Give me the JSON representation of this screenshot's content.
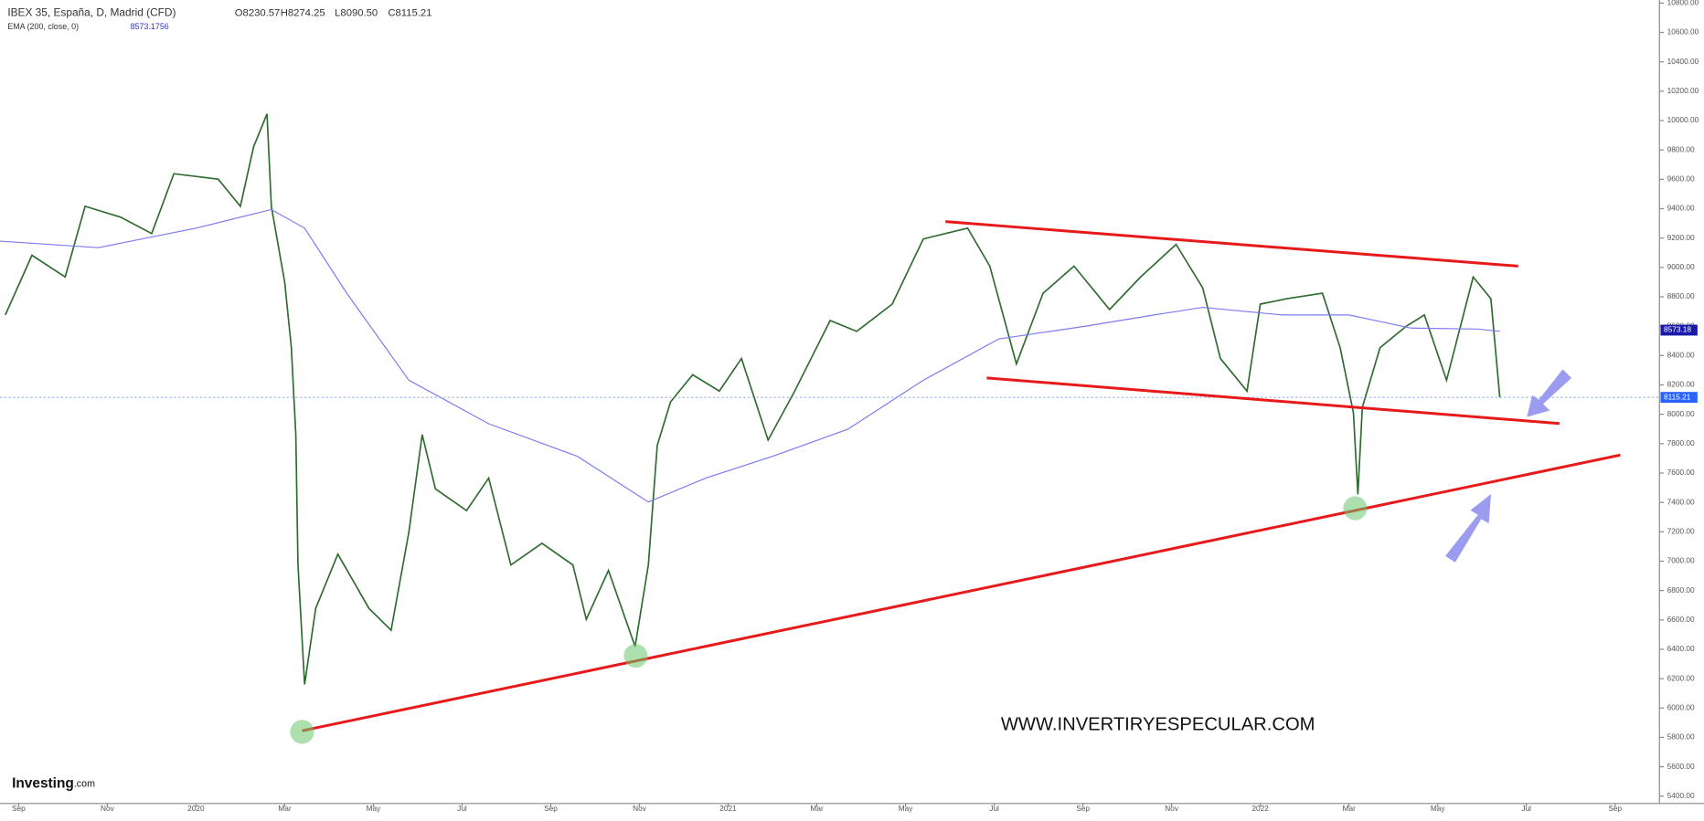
{
  "chart_data": {
    "type": "line",
    "header": {
      "open": "O8230.57",
      "high": "H8274.25",
      "low": "L8090.50",
      "close": "C8115.21",
      "ema_value": "8573.1756"
    },
    "watermark": "WWW.INVERTIRYESPECULAR.COM",
    "logo": "Investing",
    "logo_suffix": ".com",
    "last_price": 8115.21,
    "ema_last": 8573.18,
    "xlim": [
      -0.42,
      37
    ],
    "xticks": [
      {
        "value": 0,
        "label": "Sep"
      },
      {
        "value": 2,
        "label": "Nov"
      },
      {
        "value": 4,
        "label": "2020"
      },
      {
        "value": 6,
        "label": "Mar"
      },
      {
        "value": 8,
        "label": "May"
      },
      {
        "value": 10,
        "label": "Jul"
      },
      {
        "value": 12,
        "label": "Sep"
      },
      {
        "value": 14,
        "label": "Nov"
      },
      {
        "value": 16,
        "label": "2021"
      },
      {
        "value": 18,
        "label": "Mar"
      },
      {
        "value": 20,
        "label": "May"
      },
      {
        "value": 22,
        "label": "Jul"
      },
      {
        "value": 24,
        "label": "Sep"
      },
      {
        "value": 26,
        "label": "Nov"
      },
      {
        "value": 28,
        "label": "2022"
      },
      {
        "value": 30,
        "label": "Mar"
      },
      {
        "value": 32,
        "label": "May"
      },
      {
        "value": 34,
        "label": "Jul"
      },
      {
        "value": 36,
        "label": "Sep"
      }
    ],
    "ylim": [
      5350,
      10820
    ],
    "yticks": [
      {
        "value": 5400,
        "label": "5400.00"
      },
      {
        "value": 5600,
        "label": "5600.00"
      },
      {
        "value": 5800,
        "label": "5800.00"
      },
      {
        "value": 6000,
        "label": "6000.00"
      },
      {
        "value": 6200,
        "label": "6200.00"
      },
      {
        "value": 6400,
        "label": "6400.00"
      },
      {
        "value": 6600,
        "label": "6600.00"
      },
      {
        "value": 6800,
        "label": "6800.00"
      },
      {
        "value": 7000,
        "label": "7000.00"
      },
      {
        "value": 7200,
        "label": "7200.00"
      },
      {
        "value": 7400,
        "label": "7400.00"
      },
      {
        "value": 7600,
        "label": "7600.00"
      },
      {
        "value": 7800,
        "label": "7800.00"
      },
      {
        "value": 8000,
        "label": "8000.00"
      },
      {
        "value": 8200,
        "label": "8200.00"
      },
      {
        "value": 8400,
        "label": "8400.00"
      },
      {
        "value": 8600,
        "label": "8600.00"
      },
      {
        "value": 8800,
        "label": "8800.00"
      },
      {
        "value": 9000,
        "label": "9000.00"
      },
      {
        "value": 9200,
        "label": "9200.00"
      },
      {
        "value": 9400,
        "label": "9400.00"
      },
      {
        "value": 9600,
        "label": "9600.00"
      },
      {
        "value": 9800,
        "label": "9800.00"
      },
      {
        "value": 10000,
        "label": "10000.00"
      },
      {
        "value": 10200,
        "label": "10200.00"
      },
      {
        "value": 10400,
        "label": "10400.00"
      },
      {
        "value": 10600,
        "label": "10600.00"
      },
      {
        "value": 10800,
        "label": "10800.00"
      }
    ],
    "series": [
      {
        "name": "IBEX 35, España, D, Madrid (CFD)",
        "color": "#2e6b2e",
        "x": [
          -0.3,
          0.3,
          1.05,
          1.5,
          2.3,
          3.0,
          3.5,
          4.5,
          5.0,
          5.3,
          5.6,
          5.7,
          6.0,
          6.15,
          6.25,
          6.3,
          6.45,
          6.7,
          7.2,
          7.9,
          8.4,
          8.8,
          9.1,
          9.4,
          10.1,
          10.6,
          11.1,
          11.8,
          12.5,
          12.8,
          13.3,
          13.9,
          14.2,
          14.4,
          14.7,
          15.2,
          15.8,
          16.3,
          16.9,
          17.5,
          18.3,
          18.9,
          19.7,
          20.4,
          21.4,
          21.9,
          22.5,
          23.1,
          23.8,
          24.6,
          25.3,
          26.1,
          26.7,
          27.1,
          27.7,
          28.0,
          28.6,
          29.4,
          29.8,
          30.1,
          30.2,
          30.3,
          30.7,
          31.3,
          31.7,
          32.2,
          32.8,
          33.2,
          33.4
        ],
        "values": [
          8676,
          9083,
          8935,
          9416,
          9342,
          9231,
          9638,
          9601,
          9416,
          9823,
          10045,
          9416,
          8898,
          8454,
          7862,
          6974,
          6160,
          6678,
          7048,
          6678,
          6530,
          7196,
          7862,
          7492,
          7344,
          7566,
          6974,
          7122,
          6974,
          6604,
          6937,
          6419,
          6974,
          7788,
          8084,
          8269,
          8158,
          8380,
          7825,
          8158,
          8639,
          8565,
          8750,
          9194,
          9268,
          9009,
          8343,
          8824,
          9009,
          8713,
          8935,
          9157,
          8861,
          8380,
          8158,
          8750,
          8787,
          8824,
          8454,
          8010,
          7455,
          8047,
          8454,
          8602,
          8676,
          8232,
          8935,
          8787,
          8115
        ]
      },
      {
        "name": "EMA (200, close, 0)",
        "color": "#7b7bf0",
        "x": [
          -0.42,
          1.8,
          4.0,
          5.7,
          6.45,
          7.4,
          8.8,
          10.6,
          12.6,
          14.2,
          15.5,
          17.0,
          18.7,
          20.4,
          22.1,
          24.1,
          25.6,
          26.7,
          28.5,
          30.0,
          31.4,
          32.9,
          33.4
        ],
        "values": [
          9179,
          9135,
          9268,
          9394,
          9268,
          8824,
          8232,
          7936,
          7714,
          7403,
          7566,
          7714,
          7899,
          8232,
          8513,
          8602,
          8676,
          8728,
          8676,
          8676,
          8587,
          8580,
          8565
        ]
      }
    ]
  }
}
